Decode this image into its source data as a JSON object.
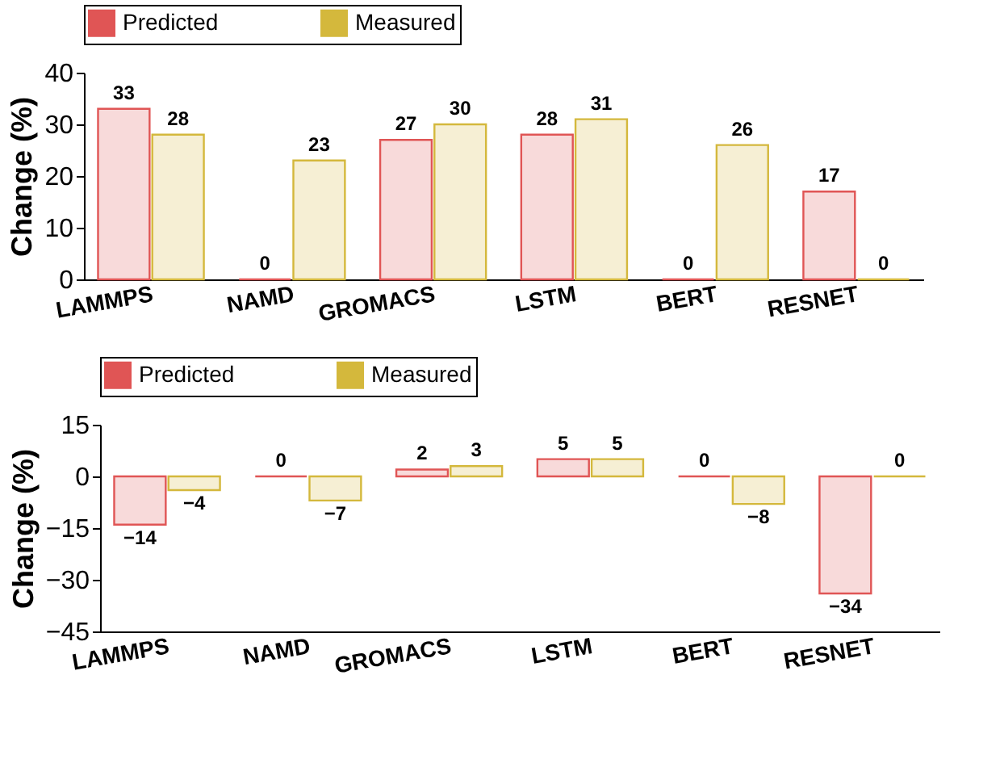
{
  "chart_data": [
    {
      "type": "bar",
      "ylabel": "Change (%)",
      "categories": [
        "LAMMPS",
        "NAMD",
        "GROMACS",
        "LSTM",
        "BERT",
        "RESNET"
      ],
      "series": [
        {
          "name": "Predicted",
          "color": "#e05555",
          "values": [
            33,
            0,
            27,
            28,
            0,
            17
          ]
        },
        {
          "name": "Measured",
          "color": "#d4b83c",
          "values": [
            28,
            23,
            30,
            31,
            26,
            0
          ]
        }
      ],
      "ylim": [
        0,
        40
      ],
      "yticks": [
        0,
        10,
        20,
        30,
        40
      ],
      "grid": false,
      "legend": "top",
      "data_labels": true
    },
    {
      "type": "bar",
      "ylabel": "Change (%)",
      "categories": [
        "LAMMPS",
        "NAMD",
        "GROMACS",
        "LSTM",
        "BERT",
        "RESNET"
      ],
      "series": [
        {
          "name": "Predicted",
          "color": "#e05555",
          "values": [
            -14,
            0,
            2,
            5,
            0,
            -34
          ]
        },
        {
          "name": "Measured",
          "color": "#d4b83c",
          "values": [
            -4,
            -7,
            3,
            5,
            -8,
            0
          ]
        }
      ],
      "ylim": [
        -45,
        15
      ],
      "yticks": [
        -45,
        -30,
        -15,
        0,
        15
      ],
      "grid": false,
      "legend": "top",
      "data_labels": true
    }
  ]
}
